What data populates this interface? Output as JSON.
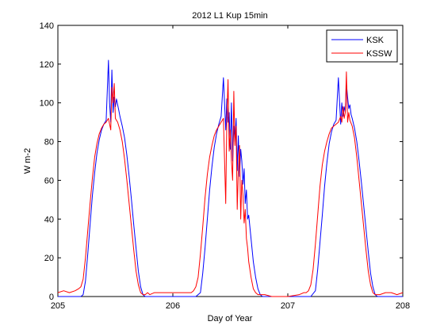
{
  "chart_data": {
    "type": "line",
    "title": "2012 L1 Kup 15min",
    "xlabel": "Day of Year",
    "ylabel": "W m-2",
    "xlim": [
      205,
      208
    ],
    "ylim": [
      0,
      140
    ],
    "xticks": [
      205,
      206,
      207,
      208
    ],
    "yticks": [
      0,
      20,
      40,
      60,
      80,
      100,
      120,
      140
    ],
    "grid": false,
    "legend_position": "top-right",
    "series": [
      {
        "name": "KSK",
        "color": "#0000ff",
        "x": [
          205.0,
          205.1,
          205.2,
          205.22,
          205.24,
          205.26,
          205.28,
          205.3,
          205.32,
          205.34,
          205.36,
          205.38,
          205.4,
          205.42,
          205.44,
          205.45,
          205.46,
          205.47,
          205.48,
          205.49,
          205.5,
          205.51,
          205.52,
          205.53,
          205.54,
          205.56,
          205.58,
          205.6,
          205.62,
          205.64,
          205.66,
          205.68,
          205.7,
          205.72,
          205.74,
          205.76,
          205.78,
          205.8,
          205.82,
          205.86,
          205.9,
          206.0,
          206.1,
          206.2,
          206.24,
          206.26,
          206.28,
          206.3,
          206.32,
          206.34,
          206.36,
          206.38,
          206.4,
          206.42,
          206.44,
          206.46,
          206.47,
          206.48,
          206.49,
          206.5,
          206.51,
          206.52,
          206.53,
          206.54,
          206.55,
          206.56,
          206.57,
          206.58,
          206.59,
          206.6,
          206.61,
          206.62,
          206.63,
          206.64,
          206.65,
          206.66,
          206.68,
          206.7,
          206.72,
          206.74,
          206.76,
          206.78,
          206.8,
          206.82,
          206.86,
          206.9,
          207.0,
          207.1,
          207.2,
          207.24,
          207.26,
          207.28,
          207.3,
          207.32,
          207.34,
          207.36,
          207.38,
          207.4,
          207.42,
          207.44,
          207.46,
          207.47,
          207.48,
          207.49,
          207.5,
          207.51,
          207.52,
          207.53,
          207.54,
          207.55,
          207.56,
          207.58,
          207.6,
          207.62,
          207.64,
          207.66,
          207.68,
          207.7,
          207.72,
          207.74,
          207.76,
          207.78,
          207.8,
          207.82,
          207.86,
          207.9,
          208.0
        ],
        "y": [
          0,
          0,
          0,
          1,
          8,
          22,
          37,
          52,
          64,
          74,
          81,
          86,
          89,
          91,
          122,
          100,
          90,
          117,
          95,
          103,
          98,
          102,
          99,
          96,
          93,
          88,
          82,
          73,
          62,
          50,
          37,
          25,
          13,
          5,
          1,
          0,
          0,
          0,
          0,
          0,
          0,
          0,
          0,
          0,
          2,
          12,
          25,
          40,
          55,
          67,
          77,
          84,
          89,
          93,
          113,
          86,
          102,
          90,
          95,
          76,
          100,
          70,
          88,
          80,
          92,
          65,
          83,
          62,
          76,
          70,
          58,
          66,
          48,
          55,
          40,
          42,
          30,
          18,
          10,
          4,
          1,
          0,
          0,
          0,
          0,
          0,
          0,
          0,
          0,
          3,
          14,
          28,
          42,
          57,
          69,
          79,
          85,
          89,
          91,
          113,
          89,
          100,
          93,
          98,
          95,
          110,
          103,
          97,
          99,
          94,
          92,
          87,
          80,
          70,
          59,
          47,
          35,
          23,
          12,
          5,
          1,
          0,
          0,
          0,
          0,
          0,
          0
        ]
      },
      {
        "name": "KSSW",
        "color": "#ff0000",
        "x": [
          205.0,
          205.05,
          205.1,
          205.15,
          205.18,
          205.2,
          205.22,
          205.24,
          205.26,
          205.28,
          205.3,
          205.32,
          205.34,
          205.36,
          205.38,
          205.4,
          205.42,
          205.44,
          205.46,
          205.47,
          205.48,
          205.49,
          205.5,
          205.51,
          205.52,
          205.54,
          205.56,
          205.58,
          205.6,
          205.62,
          205.64,
          205.66,
          205.68,
          205.7,
          205.72,
          205.74,
          205.76,
          205.78,
          205.8,
          205.84,
          205.9,
          206.0,
          206.1,
          206.16,
          206.18,
          206.2,
          206.22,
          206.24,
          206.26,
          206.28,
          206.3,
          206.32,
          206.34,
          206.36,
          206.38,
          206.4,
          206.42,
          206.44,
          206.46,
          206.47,
          206.48,
          206.49,
          206.5,
          206.51,
          206.52,
          206.53,
          206.54,
          206.55,
          206.56,
          206.57,
          206.58,
          206.59,
          206.6,
          206.61,
          206.62,
          206.63,
          206.64,
          206.65,
          206.66,
          206.68,
          206.7,
          206.72,
          206.74,
          206.76,
          206.8,
          206.86,
          206.9,
          207.0,
          207.1,
          207.14,
          207.16,
          207.18,
          207.2,
          207.22,
          207.24,
          207.26,
          207.28,
          207.3,
          207.32,
          207.34,
          207.36,
          207.38,
          207.4,
          207.42,
          207.44,
          207.46,
          207.47,
          207.48,
          207.49,
          207.5,
          207.51,
          207.52,
          207.53,
          207.54,
          207.56,
          207.58,
          207.6,
          207.62,
          207.64,
          207.66,
          207.68,
          207.7,
          207.72,
          207.74,
          207.76,
          207.78,
          207.8,
          207.85,
          207.9,
          207.95,
          208.0
        ],
        "y": [
          2,
          3,
          2,
          3,
          4,
          5,
          9,
          20,
          34,
          48,
          61,
          72,
          79,
          84,
          87,
          89,
          90,
          92,
          86,
          108,
          100,
          110,
          92,
          91,
          90,
          86,
          80,
          71,
          60,
          48,
          36,
          24,
          13,
          6,
          2,
          1,
          1,
          2,
          1,
          2,
          2,
          2,
          2,
          2,
          3,
          5,
          10,
          22,
          36,
          51,
          63,
          72,
          78,
          83,
          86,
          88,
          90,
          92,
          48,
          92,
          112,
          75,
          86,
          70,
          60,
          106,
          78,
          88,
          45,
          65,
          78,
          40,
          60,
          52,
          38,
          45,
          30,
          25,
          18,
          10,
          4,
          2,
          1,
          1,
          1,
          0,
          0,
          0,
          1,
          2,
          2,
          3,
          6,
          14,
          27,
          42,
          57,
          68,
          75,
          80,
          84,
          87,
          88,
          89,
          90,
          93,
          90,
          98,
          92,
          95,
          116,
          90,
          95,
          91,
          88,
          82,
          72,
          60,
          48,
          36,
          24,
          13,
          6,
          2,
          1,
          1,
          1,
          2,
          2,
          1,
          2
        ]
      }
    ]
  }
}
